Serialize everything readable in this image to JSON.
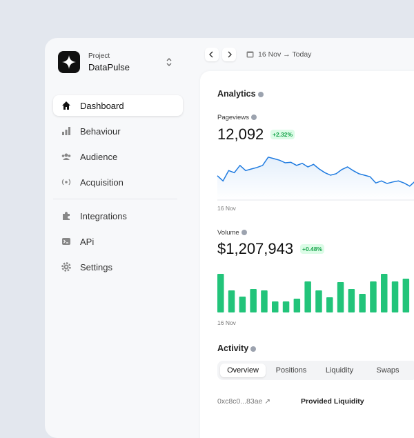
{
  "sidebar": {
    "project_label": "Project",
    "project_name": "DataPulse",
    "nav": [
      "Dashboard",
      "Behaviour",
      "Audience",
      "Acquisition",
      "Integrations",
      "APi",
      "Settings"
    ]
  },
  "topbar": {
    "date_range": "16 Nov → Today"
  },
  "analytics": {
    "title": "Analytics",
    "pageviews": {
      "label": "Pageviews",
      "value": "12,092",
      "change": "+2.32%",
      "x_label": "16 Nov",
      "chart": {
        "type": "line",
        "color": "#1d7ae0",
        "ylim": [
          0,
          100
        ],
        "values": [
          47,
          37,
          57,
          53,
          67,
          57,
          60,
          63,
          67,
          83,
          80,
          77,
          72,
          73,
          67,
          71,
          64,
          69,
          60,
          53,
          48,
          51,
          59,
          64,
          57,
          51,
          48,
          45,
          33,
          37,
          32,
          35,
          37,
          33,
          27,
          37
        ]
      }
    },
    "volume": {
      "label": "Volume",
      "value": "$1,207,943",
      "change": "+0.48%",
      "x_label": "16 Nov",
      "chart": {
        "type": "bar",
        "color": "#22c47a",
        "ylim": [
          0,
          60
        ],
        "values": [
          56,
          32,
          23,
          34,
          32,
          16,
          16,
          20,
          45,
          32,
          22,
          44,
          34,
          27,
          45,
          56,
          45,
          49
        ]
      }
    }
  },
  "activity": {
    "title": "Activity",
    "tabs": [
      "Overview",
      "Positions",
      "Liquidity",
      "Swaps"
    ],
    "rows": [
      {
        "hash": "0xc8c0...83ae ↗",
        "action": "Provided Liquidity"
      }
    ]
  }
}
